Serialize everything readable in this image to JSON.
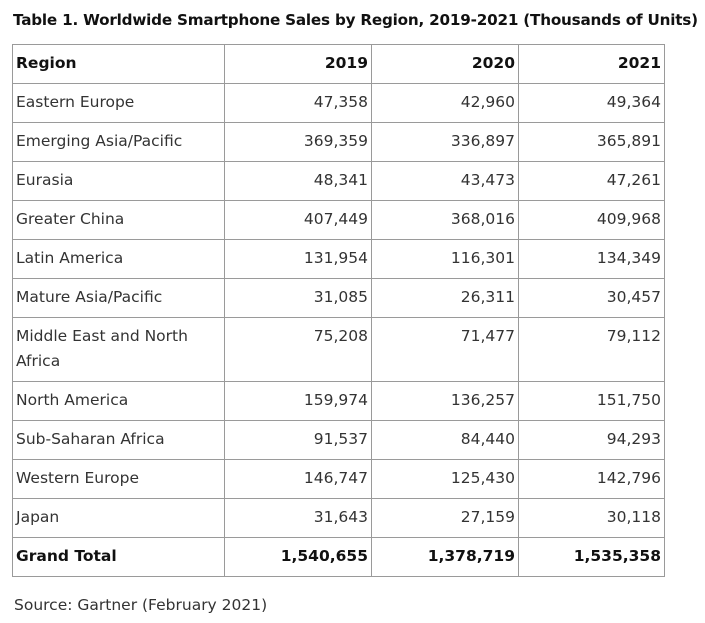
{
  "caption": "Table 1. Worldwide Smartphone Sales by Region, 2019-2021 (Thousands of Units)",
  "table": {
    "headers": [
      "Region",
      "2019",
      "2020",
      "2021"
    ],
    "rows": [
      [
        "Eastern Europe",
        "47,358",
        "42,960",
        "49,364"
      ],
      [
        "Emerging Asia/Pacific",
        "369,359",
        "336,897",
        "365,891"
      ],
      [
        "Eurasia",
        "48,341",
        "43,473",
        "47,261"
      ],
      [
        "Greater China",
        "407,449",
        "368,016",
        "409,968"
      ],
      [
        "Latin America",
        "131,954",
        "116,301",
        "134,349"
      ],
      [
        "Mature Asia/Pacific",
        "31,085",
        "26,311",
        "30,457"
      ],
      [
        "Middle East and North Africa",
        "75,208",
        "71,477",
        "79,112"
      ],
      [
        "North America",
        "159,974",
        "136,257",
        "151,750"
      ],
      [
        "Sub-Saharan Africa",
        "91,537",
        "84,440",
        "94,293"
      ],
      [
        "Western Europe",
        "146,747",
        "125,430",
        "142,796"
      ],
      [
        "Japan",
        "31,643",
        "27,159",
        "30,118"
      ]
    ],
    "total": [
      "Grand Total",
      "1,540,655",
      "1,378,719",
      "1,535,358"
    ]
  },
  "source": "Source: Gartner (February 2021)"
}
